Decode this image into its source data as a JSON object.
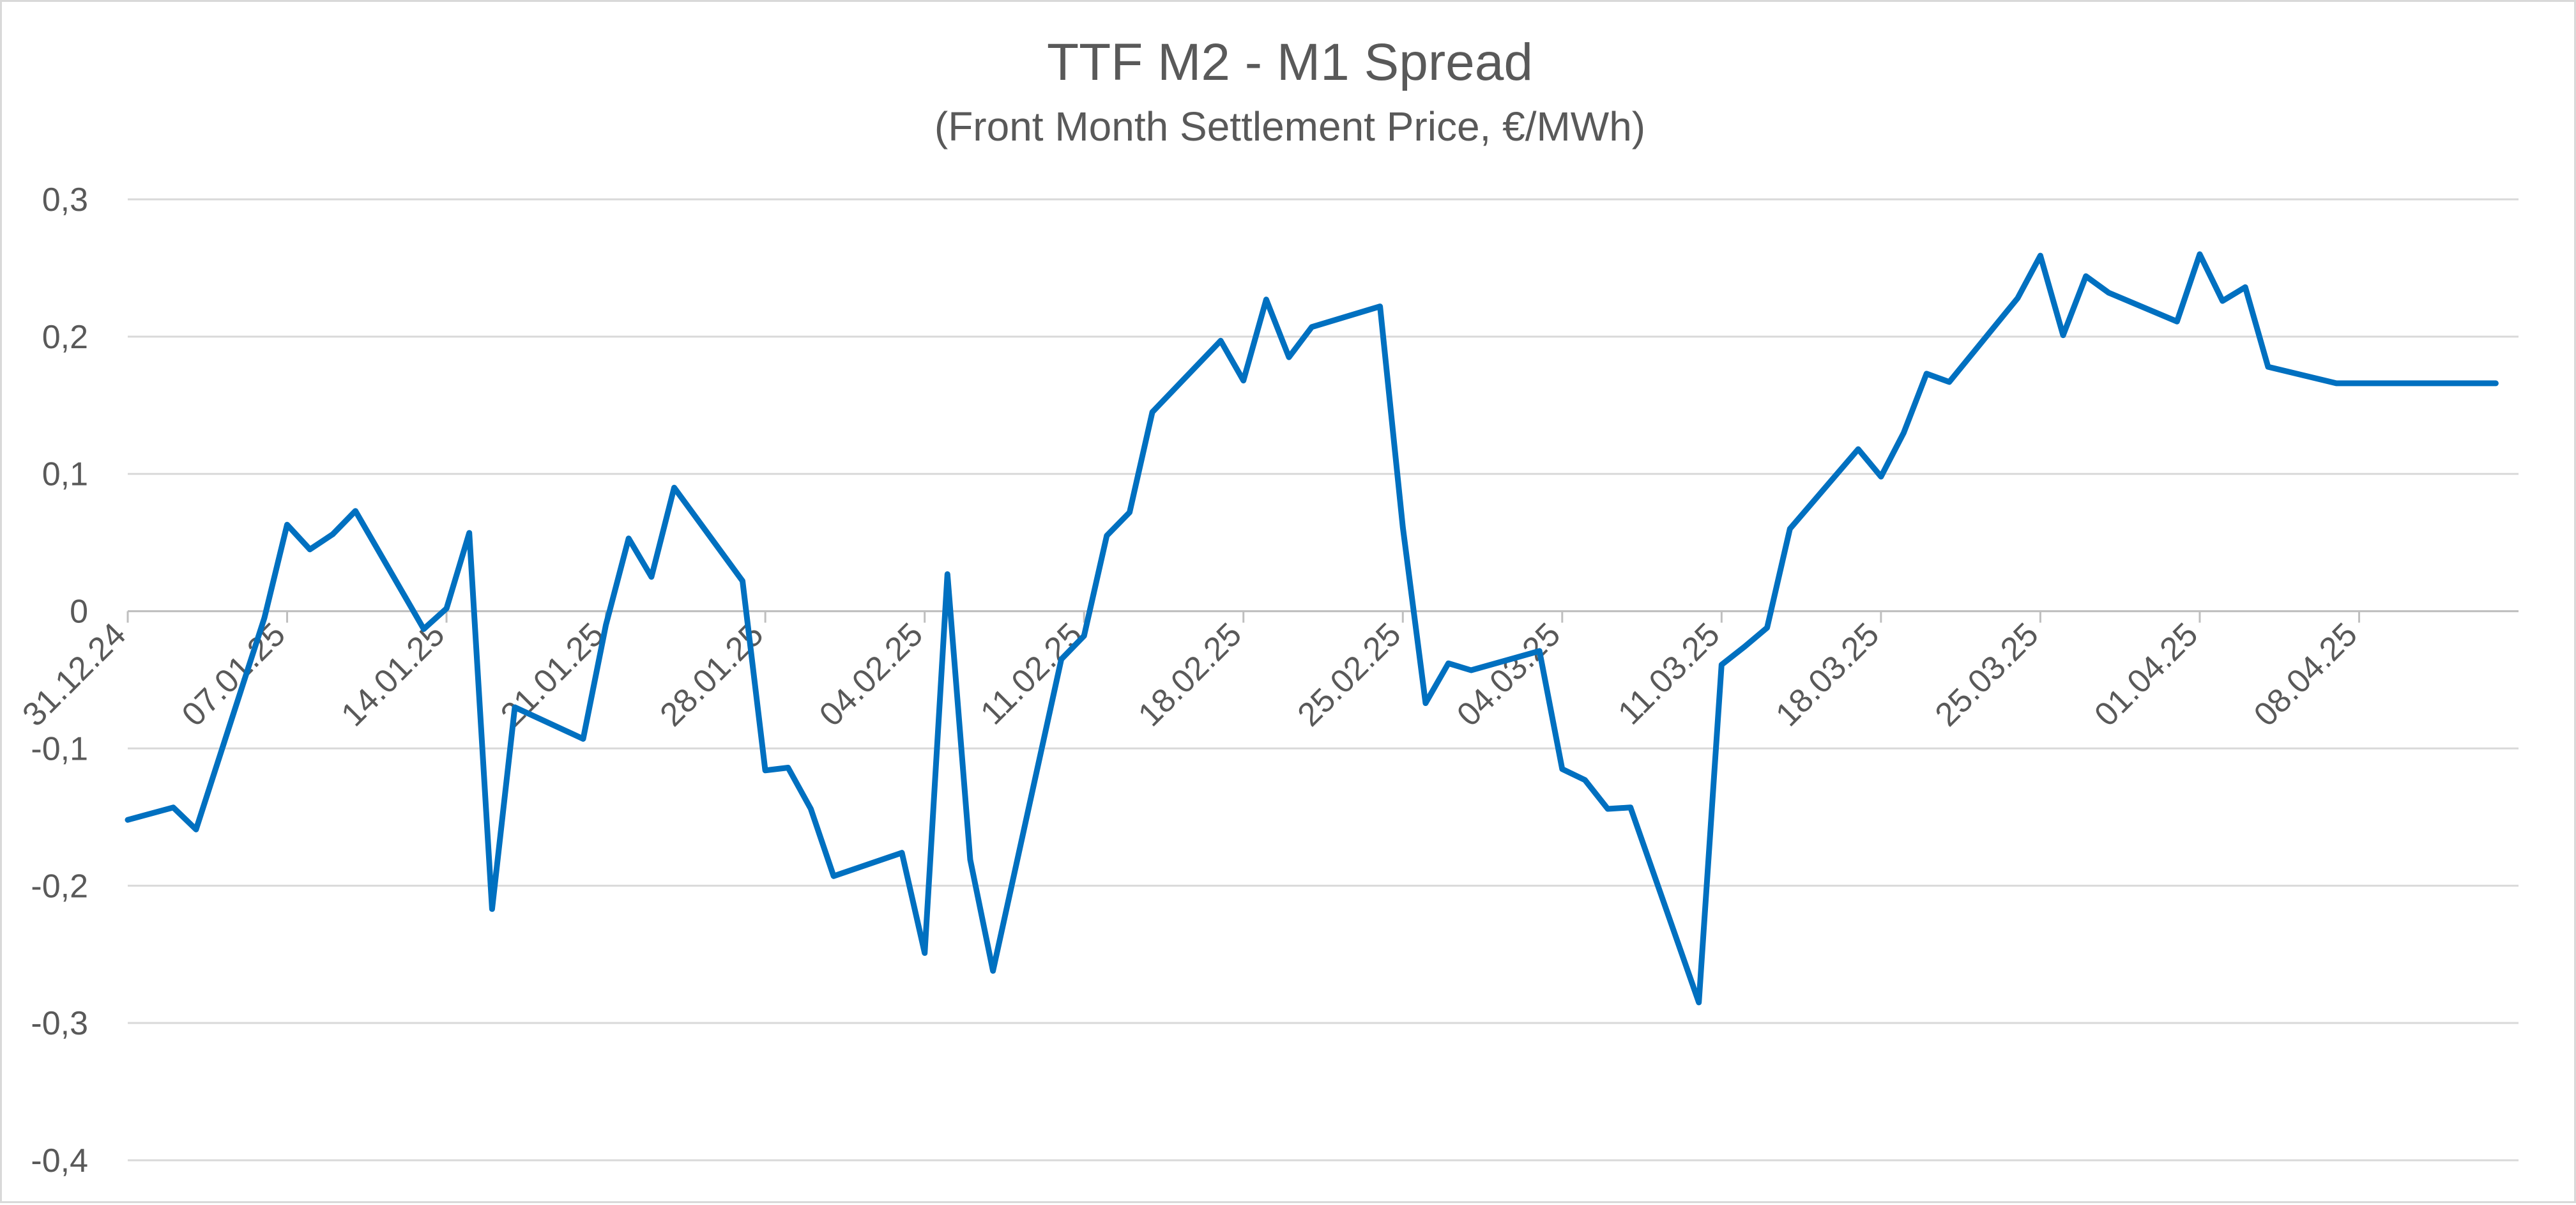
{
  "chart_data": {
    "type": "line",
    "title": "TTF M2 - M1 Spread",
    "subtitle": "(Front Month Settlement Price, €/MWh)",
    "xlabel": "",
    "ylabel": "",
    "ylim": [
      -0.4,
      0.3
    ],
    "yticks": [
      0.3,
      0.2,
      0.1,
      0,
      -0.1,
      -0.2,
      -0.3,
      -0.4
    ],
    "ytick_labels": [
      "0,3",
      "0,2",
      "0,1",
      "0",
      "-0,1",
      "-0,2",
      "-0,3",
      "-0,4"
    ],
    "xlim": [
      "2024-12-31",
      "2025-04-15"
    ],
    "xticks": [
      "2024-12-31",
      "2025-01-07",
      "2025-01-14",
      "2025-01-21",
      "2025-01-28",
      "2025-02-04",
      "2025-02-11",
      "2025-02-18",
      "2025-02-25",
      "2025-03-04",
      "2025-03-11",
      "2025-03-18",
      "2025-03-25",
      "2025-04-01",
      "2025-04-08"
    ],
    "xtick_labels": [
      "31.12.24",
      "07.01.25",
      "14.01.25",
      "21.01.25",
      "28.01.25",
      "04.02.25",
      "11.02.25",
      "18.02.25",
      "25.02.25",
      "04.03.25",
      "11.03.25",
      "18.03.25",
      "25.03.25",
      "01.04.25",
      "08.04.25"
    ],
    "grid": true,
    "legend": "none",
    "color": "#0070c0",
    "series": [
      {
        "x": [
          "2024-12-31",
          "2025-01-02",
          "2025-01-03",
          "2025-01-06",
          "2025-01-07",
          "2025-01-08",
          "2025-01-09",
          "2025-01-10",
          "2025-01-13",
          "2025-01-14",
          "2025-01-15",
          "2025-01-16",
          "2025-01-17",
          "2025-01-20",
          "2025-01-21",
          "2025-01-22",
          "2025-01-23",
          "2025-01-24",
          "2025-01-27",
          "2025-01-28",
          "2025-01-29",
          "2025-01-30",
          "2025-01-31",
          "2025-02-03",
          "2025-02-04",
          "2025-02-05",
          "2025-02-06",
          "2025-02-07",
          "2025-02-10",
          "2025-02-11",
          "2025-02-12",
          "2025-02-13",
          "2025-02-14",
          "2025-02-17",
          "2025-02-18",
          "2025-02-19",
          "2025-02-20",
          "2025-02-21",
          "2025-02-24",
          "2025-02-25",
          "2025-02-26",
          "2025-02-27",
          "2025-02-28",
          "2025-03-03",
          "2025-03-04",
          "2025-03-05",
          "2025-03-06",
          "2025-03-07",
          "2025-03-10",
          "2025-03-11",
          "2025-03-12",
          "2025-03-13",
          "2025-03-14",
          "2025-03-17",
          "2025-03-18",
          "2025-03-19",
          "2025-03-20",
          "2025-03-21",
          "2025-03-24",
          "2025-03-25",
          "2025-03-26",
          "2025-03-27",
          "2025-03-28",
          "2025-03-31",
          "2025-04-01",
          "2025-04-02",
          "2025-04-03",
          "2025-04-04",
          "2025-04-07",
          "2025-04-08",
          "2025-04-09",
          "2025-04-10",
          "2025-04-11",
          "2025-04-14"
        ],
        "y": [
          -0.152,
          -0.143,
          -0.159,
          -0.005,
          0.063,
          0.045,
          0.056,
          0.073,
          -0.013,
          0.002,
          0.057,
          -0.217,
          -0.07,
          -0.093,
          -0.01,
          0.053,
          0.025,
          0.09,
          0.022,
          -0.116,
          -0.114,
          -0.144,
          -0.193,
          -0.176,
          -0.249,
          0.027,
          -0.181,
          -0.262,
          -0.035,
          -0.018,
          0.055,
          0.072,
          0.145,
          0.197,
          0.168,
          0.227,
          0.185,
          0.207,
          0.222,
          0.061,
          -0.067,
          -0.038,
          -0.043,
          -0.029,
          -0.115,
          -0.123,
          -0.144,
          -0.143,
          -0.285,
          -0.039,
          -0.026,
          -0.012,
          0.06,
          0.118,
          0.098,
          0.13,
          0.173,
          0.167,
          0.228,
          0.259,
          0.201,
          0.244,
          0.232,
          0.211,
          0.26,
          0.226,
          0.236,
          0.178,
          0.166,
          0.166,
          0.166,
          0.166,
          0.166,
          0.166
        ]
      }
    ]
  }
}
